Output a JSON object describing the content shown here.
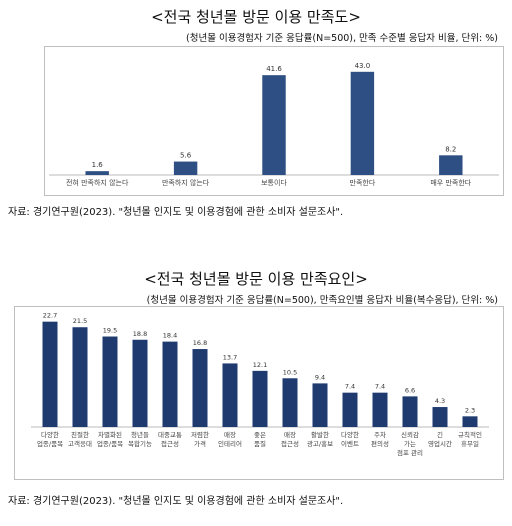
{
  "chart_data": [
    {
      "type": "bar",
      "title": "<전국 청년몰 방문 이용 만족도>",
      "subtitle": "(청년몰 이용경험자 기준 응답률(N=500), 만족 수준별 응답자 비율, 단위: %)",
      "categories": [
        "전혀 만족하지 않는다",
        "만족하지 않는다",
        "보통이다",
        "만족한다",
        "매우 만족한다"
      ],
      "values": [
        1.6,
        5.6,
        41.6,
        43.0,
        8.2
      ],
      "ylim": [
        0,
        50
      ],
      "bar_color": "#2e4f83",
      "source": "자료: 경기연구원(2023). \"청년몰 인지도 및 이용경험에 관한 소비자 설문조사\"."
    },
    {
      "type": "bar",
      "title": "<전국 청년몰 방문 이용 만족요인>",
      "subtitle": "(청년몰 이용경험자 기준 응답률(N=500), 만족요인별 응답자 비율(복수응답), 단위: %)",
      "categories": [
        [
          "다양한",
          "업종/품목"
        ],
        [
          "친절한",
          "고객응대"
        ],
        [
          "차별화된",
          "업종/품목"
        ],
        [
          "청년들",
          "복합기능"
        ],
        [
          "대중교통",
          "접근성"
        ],
        [
          "저렴한",
          "가격"
        ],
        [
          "매장",
          "인테리어"
        ],
        [
          "좋은",
          "품질"
        ],
        [
          "매장",
          "접근성"
        ],
        [
          "활발한",
          "광고/홍보"
        ],
        [
          "다양한",
          "이벤트"
        ],
        [
          "주차",
          "편의성"
        ],
        [
          "신뢰감",
          "가는",
          "점포 관리"
        ],
        [
          "긴",
          "영업시간"
        ],
        [
          "규칙적인",
          "휴무일"
        ]
      ],
      "values": [
        22.7,
        21.5,
        19.5,
        18.8,
        18.4,
        16.8,
        13.7,
        12.1,
        10.5,
        9.4,
        7.4,
        7.4,
        6.6,
        4.3,
        2.3
      ],
      "ylim": [
        0,
        25
      ],
      "bar_color": "#1f3a6f",
      "source": "자료: 경기연구원(2023). \"청년몰 인지도 및 이용경험에 관한 소비자 설문조사\"."
    }
  ]
}
